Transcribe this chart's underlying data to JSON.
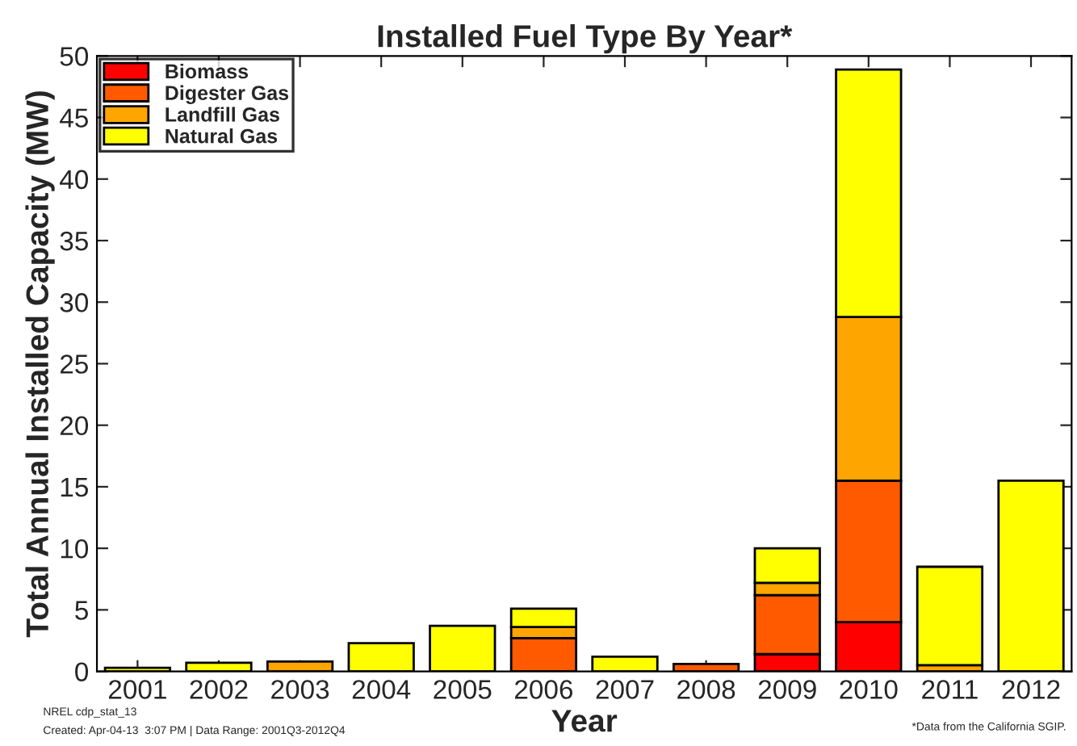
{
  "chart_data": {
    "type": "bar",
    "title": "Installed Fuel Type By Year*",
    "xlabel": "Year",
    "ylabel": "Total Annual Installed Capacity (MW)",
    "categories": [
      "2001",
      "2002",
      "2003",
      "2004",
      "2005",
      "2006",
      "2007",
      "2008",
      "2009",
      "2010",
      "2011",
      "2012"
    ],
    "stacked": true,
    "series": [
      {
        "name": "Biomass",
        "color": "#ff0000",
        "values": [
          null,
          null,
          null,
          null,
          null,
          null,
          null,
          null,
          1.4,
          4.0,
          null,
          null
        ]
      },
      {
        "name": "Digester Gas",
        "color": "#ff5a00",
        "values": [
          null,
          null,
          null,
          null,
          null,
          2.7,
          null,
          0.6,
          4.8,
          11.5,
          null,
          null
        ]
      },
      {
        "name": "Landfill Gas",
        "color": "#ffa500",
        "values": [
          null,
          null,
          0.8,
          null,
          null,
          0.9,
          null,
          null,
          1.0,
          13.3,
          0.5,
          null
        ]
      },
      {
        "name": "Natural Gas",
        "color": "#ffff00",
        "values": [
          0.3,
          0.7,
          null,
          2.3,
          3.7,
          1.5,
          1.2,
          null,
          2.8,
          20.1,
          8.0,
          15.5
        ]
      }
    ],
    "ylim": [
      0,
      50
    ],
    "yticks": [
      0,
      5,
      10,
      15,
      20,
      25,
      30,
      35,
      40,
      45,
      50
    ],
    "legend": "top left",
    "grid": false,
    "annotations": [
      "NREL cdp_stat_13",
      "Created: Apr-04-13  3:07 PM | Data Range: 2001Q3-2012Q4",
      "*Data from the California SGIP."
    ]
  }
}
